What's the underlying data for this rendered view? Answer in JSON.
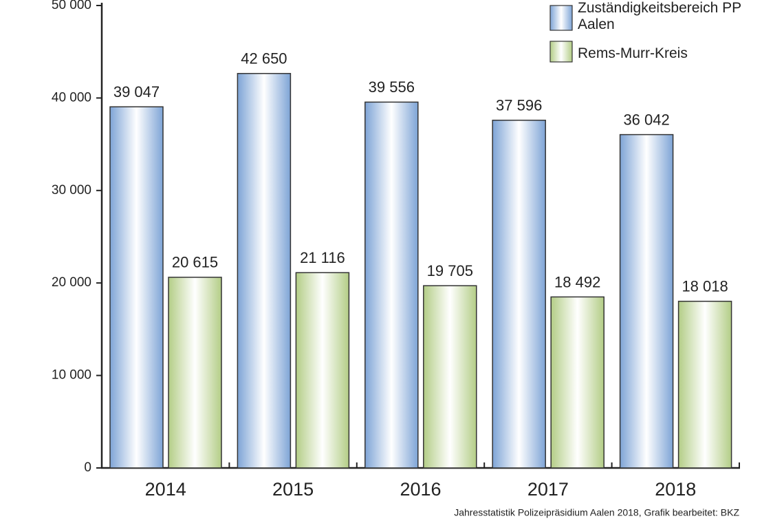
{
  "chart_data": {
    "type": "bar",
    "categories": [
      "2014",
      "2015",
      "2016",
      "2017",
      "2018"
    ],
    "series": [
      {
        "name": "Zuständigkeitsbereich PP Aalen",
        "color": "#7ea4d6",
        "values": [
          39047,
          42650,
          39556,
          37596,
          36042
        ],
        "value_labels": [
          "39 047",
          "42 650",
          "39 556",
          "37 596",
          "36 042"
        ]
      },
      {
        "name": "Rems-Murr-Kreis",
        "color": "#b3cd86",
        "values": [
          20615,
          21116,
          19705,
          18492,
          18018
        ],
        "value_labels": [
          "20 615",
          "21 116",
          "19 705",
          "18 492",
          "18 018"
        ]
      }
    ],
    "ylim": [
      0,
      50000
    ],
    "yticks": [
      {
        "value": 0,
        "label": "0"
      },
      {
        "value": 10000,
        "label": "10 000"
      },
      {
        "value": 20000,
        "label": "20 000"
      },
      {
        "value": 30000,
        "label": "30 000"
      },
      {
        "value": 40000,
        "label": "40 000"
      },
      {
        "value": 50000,
        "label": "50 000"
      }
    ],
    "legend": "top-right",
    "source": "Jahresstatistik Polizeipräsidium Aalen 2018, Grafik bearbeitet: BKZ"
  }
}
